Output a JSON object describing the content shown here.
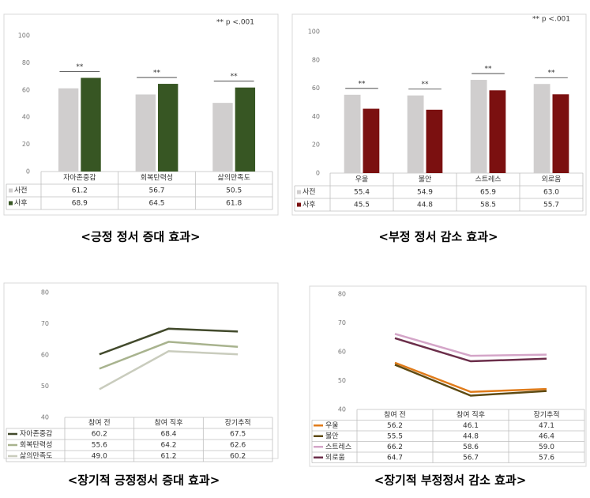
{
  "chart_data": [
    {
      "type": "bar",
      "title": "<긍정 정서 증대 효과>",
      "note": "** p <.001",
      "categories": [
        "자아존중감",
        "회복탄력성",
        "삶의만족도"
      ],
      "series": [
        {
          "name": "사전",
          "color": "#d0cece",
          "values": [
            61.2,
            56.7,
            50.5
          ]
        },
        {
          "name": "사후",
          "color": "#375623",
          "values": [
            68.9,
            64.5,
            61.8
          ]
        }
      ],
      "significance": [
        "**",
        "**",
        "**"
      ],
      "ylim": [
        0,
        100
      ],
      "yticks": [
        0,
        20,
        40,
        60,
        80,
        100
      ]
    },
    {
      "type": "bar",
      "title": "<부정 정서 감소 효과>",
      "note": "** p <.001",
      "categories": [
        "우울",
        "불안",
        "스트레스",
        "외로움"
      ],
      "series": [
        {
          "name": "사전",
          "color": "#d0cece",
          "values": [
            55.4,
            54.9,
            65.9,
            63.0
          ],
          "value_labels": [
            "55.4",
            "54.9",
            "65.9",
            "63.0"
          ]
        },
        {
          "name": "사후",
          "color": "#7b1010",
          "values": [
            45.5,
            44.8,
            58.5,
            55.7
          ]
        }
      ],
      "significance": [
        "**",
        "**",
        "**",
        "**"
      ],
      "ylim": [
        0,
        100
      ],
      "yticks": [
        0,
        20,
        40,
        60,
        80,
        100
      ]
    },
    {
      "type": "line",
      "title": "<장기적 긍정정서 증대 효과>",
      "categories": [
        "참여 전",
        "참여 직후",
        "장기추적"
      ],
      "series": [
        {
          "name": "자아존중감",
          "color": "#424a2c",
          "values": [
            60.2,
            68.4,
            67.5
          ]
        },
        {
          "name": "회복탄력성",
          "color": "#a8b38e",
          "values": [
            55.6,
            64.2,
            62.6
          ]
        },
        {
          "name": "삶의만족도",
          "color": "#c9ccbd",
          "values": [
            49.0,
            61.2,
            60.2
          ],
          "value_labels": [
            "49.0",
            "61.2",
            "60.2"
          ]
        }
      ],
      "ylim": [
        40,
        80
      ],
      "yticks": [
        40,
        50,
        60,
        70,
        80
      ]
    },
    {
      "type": "line",
      "title": "<장기적 부정정서 감소 효과>",
      "categories": [
        "참여 전",
        "참여 직후",
        "장기추적"
      ],
      "series": [
        {
          "name": "우울",
          "color": "#e07b1a",
          "values": [
            56.2,
            46.1,
            47.1
          ]
        },
        {
          "name": "불안",
          "color": "#5e4a12",
          "values": [
            55.5,
            44.8,
            46.4
          ]
        },
        {
          "name": "스트레스",
          "color": "#d4a5c8",
          "values": [
            66.2,
            58.6,
            59.0
          ],
          "value_labels": [
            "66.2",
            "58.6",
            "59.0"
          ]
        },
        {
          "name": "외로움",
          "color": "#6b2e4a",
          "values": [
            64.7,
            56.7,
            57.6
          ]
        }
      ],
      "ylim": [
        40,
        80
      ],
      "yticks": [
        40,
        50,
        60,
        70,
        80
      ]
    }
  ]
}
